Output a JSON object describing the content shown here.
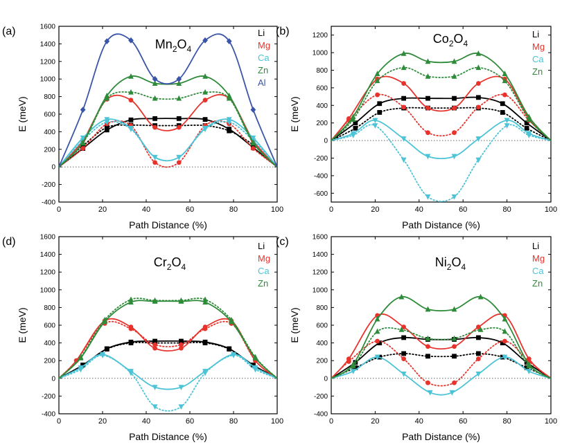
{
  "figure": {
    "xlabel": "Path Distance (%)",
    "ylabel": "E (meV)",
    "xticks": [
      0,
      20,
      40,
      60,
      80,
      100
    ],
    "colors": {
      "Li": "#000000",
      "Mg": "#e8332d",
      "Ca": "#4cc3d6",
      "Zn": "#2e8b3a",
      "Al": "#3a55a8",
      "ref": "#666666"
    }
  },
  "chart_data": [
    {
      "type": "line",
      "panel_label": "(a)",
      "title_main": "Mn",
      "title_sub1": "2",
      "title_mid": "O",
      "title_sub2": "4",
      "xlabel": "Path Distance (%)",
      "ylabel": "E (meV)",
      "xlim": [
        0,
        100
      ],
      "ylim": [
        -400,
        1600
      ],
      "yticks": [
        -400,
        -200,
        0,
        200,
        400,
        600,
        800,
        1000,
        1200,
        1400,
        1600
      ],
      "series": [
        {
          "name": "Li",
          "color": "Li",
          "marker": "square",
          "solid_x": [
            0,
            11,
            22,
            33,
            44,
            55,
            67,
            78,
            89,
            100
          ],
          "solid_y": [
            0,
            210,
            420,
            535,
            550,
            550,
            540,
            430,
            220,
            0
          ],
          "dotted_x": [
            0,
            11,
            22,
            33,
            44,
            55,
            67,
            78,
            89,
            100
          ],
          "dotted_y": [
            0,
            240,
            450,
            475,
            470,
            470,
            470,
            410,
            250,
            0
          ]
        },
        {
          "name": "Mg",
          "color": "Mg",
          "marker": "circle",
          "solid_x": [
            0,
            11,
            22,
            33,
            44,
            55,
            67,
            78,
            89,
            100
          ],
          "solid_y": [
            0,
            300,
            770,
            760,
            450,
            450,
            760,
            780,
            300,
            0
          ],
          "dotted_x": [
            0,
            11,
            22,
            33,
            44,
            55,
            67,
            78,
            89,
            100
          ],
          "dotted_y": [
            0,
            210,
            490,
            470,
            50,
            50,
            470,
            490,
            210,
            0
          ]
        },
        {
          "name": "Ca",
          "color": "Ca",
          "marker": "triangle-down",
          "solid_x": [
            0,
            11,
            22,
            33,
            44,
            55,
            67,
            78,
            89,
            100
          ],
          "solid_y": [
            0,
            330,
            540,
            440,
            110,
            110,
            440,
            540,
            330,
            0
          ],
          "dotted_x": [
            0,
            11,
            22,
            33,
            44,
            55,
            67,
            78,
            89,
            100
          ],
          "dotted_y": [
            0,
            300,
            510,
            430,
            110,
            110,
            430,
            510,
            300,
            0
          ]
        },
        {
          "name": "Zn",
          "color": "Zn",
          "marker": "triangle-up",
          "solid_x": [
            0,
            11,
            22,
            33,
            44,
            55,
            67,
            78,
            89,
            100
          ],
          "solid_y": [
            0,
            280,
            810,
            1030,
            950,
            950,
            1030,
            810,
            280,
            0
          ],
          "dotted_x": [
            0,
            11,
            22,
            33,
            44,
            55,
            67,
            78,
            89,
            100
          ],
          "dotted_y": [
            0,
            270,
            780,
            850,
            780,
            780,
            850,
            780,
            270,
            0
          ]
        },
        {
          "name": "Al",
          "color": "Al",
          "marker": "diamond",
          "solid_x": [
            0,
            11,
            22,
            33,
            44,
            55,
            67,
            78,
            89,
            100
          ],
          "solid_y": [
            0,
            650,
            1430,
            1440,
            1000,
            1000,
            1440,
            1430,
            650,
            0
          ],
          "dotted_x": [],
          "dotted_y": []
        }
      ]
    },
    {
      "type": "line",
      "panel_label": "(b)",
      "title_main": "Co",
      "title_sub1": "2",
      "title_mid": "O",
      "title_sub2": "4",
      "xlabel": "Path Distance (%)",
      "ylabel": "E (meV)",
      "xlim": [
        0,
        100
      ],
      "ylim": [
        -700,
        1300
      ],
      "yticks": [
        -600,
        -400,
        -200,
        0,
        200,
        400,
        600,
        800,
        1000,
        1200
      ],
      "series": [
        {
          "name": "Li",
          "color": "Li",
          "marker": "square",
          "solid_x": [
            0,
            11,
            22,
            33,
            44,
            56,
            67,
            78,
            89,
            100
          ],
          "solid_y": [
            0,
            200,
            420,
            480,
            480,
            480,
            490,
            420,
            200,
            0
          ],
          "dotted_x": [
            0,
            11,
            22,
            33,
            44,
            56,
            67,
            78,
            89,
            100
          ],
          "dotted_y": [
            0,
            140,
            320,
            370,
            370,
            370,
            370,
            320,
            140,
            0
          ]
        },
        {
          "name": "Mg",
          "color": "Mg",
          "marker": "circle",
          "solid_x": [
            0,
            8,
            21,
            33,
            44,
            56,
            67,
            79,
            90,
            100
          ],
          "solid_y": [
            0,
            250,
            700,
            650,
            370,
            370,
            650,
            700,
            250,
            0
          ],
          "dotted_x": [
            0,
            8,
            21,
            33,
            44,
            56,
            67,
            79,
            90,
            100
          ],
          "dotted_y": [
            0,
            230,
            520,
            380,
            90,
            90,
            380,
            520,
            230,
            0
          ]
        },
        {
          "name": "Ca",
          "color": "Ca",
          "marker": "triangle-down",
          "solid_x": [
            0,
            10,
            20,
            33,
            44,
            56,
            67,
            80,
            90,
            100
          ],
          "solid_y": [
            0,
            80,
            230,
            20,
            -180,
            -180,
            20,
            230,
            80,
            0
          ],
          "dotted_x": [
            0,
            10,
            20,
            33,
            44,
            56,
            67,
            80,
            90,
            100
          ],
          "dotted_y": [
            0,
            60,
            170,
            -220,
            -640,
            -640,
            -220,
            170,
            60,
            0
          ]
        },
        {
          "name": "Zn",
          "color": "Zn",
          "marker": "triangle-up",
          "solid_x": [
            0,
            10,
            21,
            33,
            44,
            56,
            67,
            79,
            90,
            100
          ],
          "solid_y": [
            0,
            270,
            760,
            990,
            900,
            900,
            990,
            760,
            270,
            0
          ],
          "dotted_x": [
            0,
            10,
            21,
            33,
            44,
            56,
            67,
            79,
            90,
            100
          ],
          "dotted_y": [
            0,
            240,
            680,
            830,
            730,
            730,
            830,
            680,
            240,
            0
          ]
        }
      ]
    },
    {
      "type": "line",
      "panel_label": "(d)",
      "title_main": "Cr",
      "title_sub1": "2",
      "title_mid": "O",
      "title_sub2": "4",
      "xlabel": "Path Distance (%)",
      "ylabel": "E (meV)",
      "xlim": [
        0,
        100
      ],
      "ylim": [
        -400,
        1600
      ],
      "yticks": [
        -400,
        -200,
        0,
        200,
        400,
        600,
        800,
        1000,
        1200,
        1400,
        1600
      ],
      "series": [
        {
          "name": "Li",
          "color": "Li",
          "marker": "square",
          "solid_x": [
            0,
            11,
            22,
            33,
            44,
            56,
            67,
            78,
            89,
            100
          ],
          "solid_y": [
            0,
            150,
            335,
            410,
            420,
            420,
            410,
            335,
            150,
            0
          ],
          "dotted_x": [
            0,
            11,
            22,
            33,
            44,
            56,
            67,
            78,
            89,
            100
          ],
          "dotted_y": [
            0,
            150,
            330,
            400,
            400,
            400,
            400,
            330,
            150,
            0
          ]
        },
        {
          "name": "Mg",
          "color": "Mg",
          "marker": "circle",
          "solid_x": [
            0,
            8,
            21,
            33,
            44,
            56,
            67,
            79,
            90,
            100
          ],
          "solid_y": [
            0,
            200,
            650,
            580,
            340,
            340,
            580,
            650,
            200,
            0
          ],
          "dotted_x": [
            0,
            8,
            21,
            33,
            44,
            56,
            67,
            79,
            90,
            100
          ],
          "dotted_y": [
            0,
            200,
            620,
            560,
            380,
            380,
            560,
            620,
            200,
            0
          ]
        },
        {
          "name": "Ca",
          "color": "Ca",
          "marker": "triangle-down",
          "solid_x": [
            0,
            10,
            20,
            33,
            44,
            56,
            67,
            80,
            90,
            100
          ],
          "solid_y": [
            0,
            120,
            270,
            80,
            -100,
            -100,
            80,
            270,
            120,
            0
          ],
          "dotted_x": [
            0,
            10,
            20,
            33,
            44,
            56,
            67,
            80,
            90,
            100
          ],
          "dotted_y": [
            0,
            100,
            260,
            60,
            -320,
            -320,
            60,
            260,
            100,
            0
          ]
        },
        {
          "name": "Zn",
          "color": "Zn",
          "marker": "triangle-up",
          "solid_x": [
            0,
            10,
            21,
            33,
            44,
            56,
            67,
            79,
            90,
            100
          ],
          "solid_y": [
            0,
            230,
            640,
            860,
            870,
            870,
            860,
            640,
            230,
            0
          ],
          "dotted_x": [
            0,
            10,
            21,
            33,
            44,
            56,
            67,
            79,
            90,
            100
          ],
          "dotted_y": [
            0,
            240,
            660,
            890,
            880,
            880,
            890,
            660,
            240,
            0
          ]
        }
      ]
    },
    {
      "type": "line",
      "panel_label": "(c)",
      "title_main": "Ni",
      "title_sub1": "2",
      "title_mid": "O",
      "title_sub2": "4",
      "xlabel": "Path Distance (%)",
      "ylabel": "E (meV)",
      "xlim": [
        0,
        100
      ],
      "ylim": [
        -400,
        1600
      ],
      "yticks": [
        -400,
        -200,
        0,
        200,
        400,
        600,
        800,
        1000,
        1200,
        1400,
        1600
      ],
      "series": [
        {
          "name": "Li",
          "color": "Li",
          "marker": "square",
          "solid_x": [
            0,
            11,
            22,
            33,
            44,
            56,
            67,
            78,
            89,
            100
          ],
          "solid_y": [
            0,
            180,
            400,
            460,
            440,
            440,
            460,
            400,
            180,
            0
          ],
          "dotted_x": [
            0,
            11,
            22,
            33,
            44,
            56,
            67,
            78,
            89,
            100
          ],
          "dotted_y": [
            0,
            120,
            240,
            280,
            250,
            250,
            280,
            240,
            120,
            0
          ]
        },
        {
          "name": "Mg",
          "color": "Mg",
          "marker": "circle",
          "solid_x": [
            0,
            8,
            21,
            33,
            44,
            56,
            67,
            79,
            90,
            100
          ],
          "solid_y": [
            0,
            220,
            710,
            580,
            360,
            360,
            580,
            710,
            220,
            0
          ],
          "dotted_x": [
            0,
            8,
            21,
            33,
            44,
            56,
            67,
            79,
            90,
            100
          ],
          "dotted_y": [
            0,
            190,
            420,
            220,
            -50,
            -50,
            220,
            420,
            190,
            0
          ]
        },
        {
          "name": "Ca",
          "color": "Ca",
          "marker": "triangle-down",
          "solid_x": [
            0,
            10,
            21,
            33,
            45,
            55,
            67,
            79,
            90,
            100
          ],
          "solid_y": [
            0,
            80,
            240,
            50,
            -160,
            -160,
            50,
            240,
            80,
            0
          ],
          "dotted_x": [],
          "dotted_y": []
        },
        {
          "name": "Zn",
          "color": "Zn",
          "marker": "triangle-up",
          "solid_x": [
            0,
            10,
            21,
            32,
            44,
            56,
            68,
            79,
            90,
            100
          ],
          "solid_y": [
            0,
            160,
            670,
            920,
            780,
            780,
            920,
            670,
            160,
            0
          ],
          "dotted_x": [
            0,
            10,
            21,
            32,
            44,
            56,
            68,
            79,
            90,
            100
          ],
          "dotted_y": [
            0,
            140,
            530,
            550,
            450,
            450,
            550,
            530,
            140,
            0
          ]
        }
      ]
    }
  ]
}
